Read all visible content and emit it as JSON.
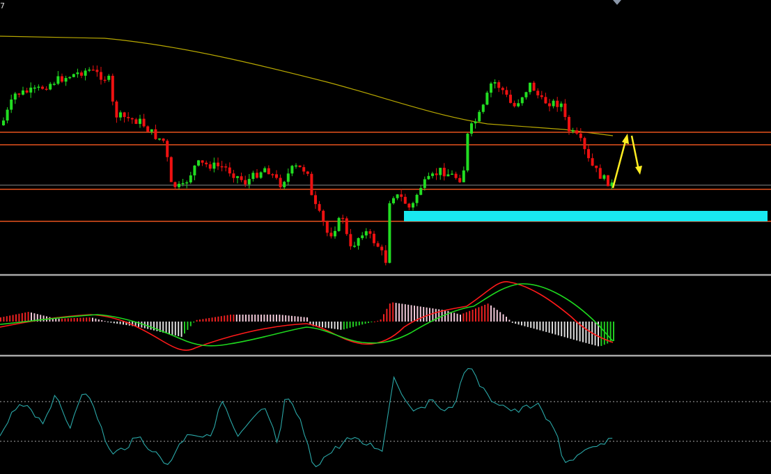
{
  "corner_label": "7"
}
